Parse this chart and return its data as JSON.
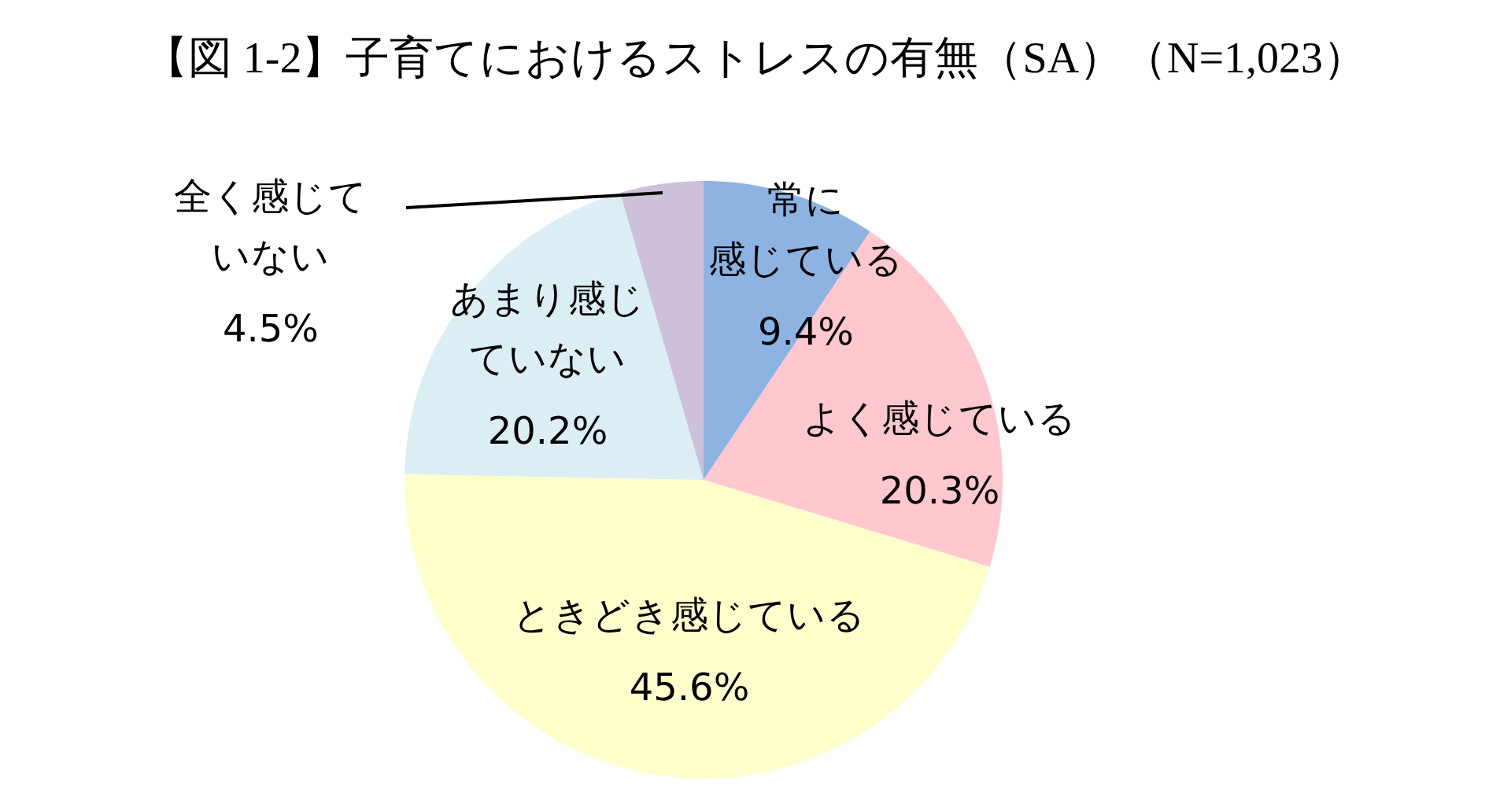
{
  "chart_data": {
    "type": "pie",
    "title": "【図 1-2】子育てにおけるストレスの有無（SA）（N=1,023）",
    "categories": [
      "常に感じている",
      "よく感じている",
      "ときどき感じている",
      "あまり感じていない",
      "全く感じていない"
    ],
    "values": [
      9.4,
      20.3,
      45.6,
      20.2,
      4.5
    ],
    "value_labels": [
      "9.4%",
      "20.3%",
      "45.6%",
      "20.2%",
      "4.5%"
    ],
    "colors": [
      "#8db3e2",
      "#ffc7ce",
      "#ffffcc",
      "#dbeef4",
      "#ccc0da"
    ],
    "legend": false
  }
}
